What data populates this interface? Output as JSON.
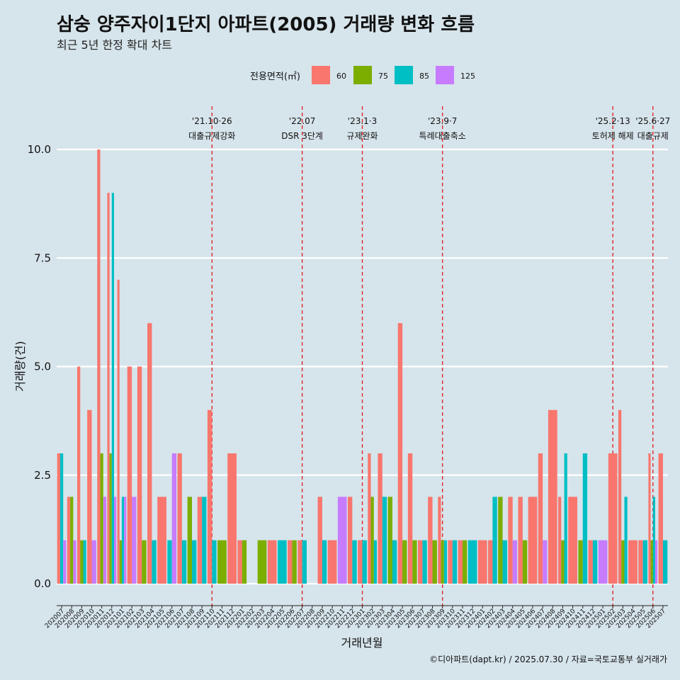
{
  "chart_data": {
    "type": "bar",
    "title": "삼숭 양주자이1단지 아파트(2005) 거래량 변화 흐름",
    "subtitle": "최근 5년 한정 확대 차트",
    "xlabel": "거래년월",
    "ylabel": "거래량(건)",
    "ylim": [
      0,
      10.5
    ],
    "yticks": [
      "0.0",
      "2.5",
      "5.0",
      "7.5",
      "10.0"
    ],
    "ytick_values": [
      0,
      2.5,
      5,
      7.5,
      10
    ],
    "legend": {
      "title": "전용면적(㎡)",
      "position": "top",
      "entries": [
        {
          "label": "60",
          "color": "#F8766D"
        },
        {
          "label": "75",
          "color": "#7CAE00"
        },
        {
          "label": "85",
          "color": "#00BFC4"
        },
        {
          "label": "125",
          "color": "#C77CFF"
        }
      ]
    },
    "categories": [
      "202007",
      "202008",
      "202009",
      "202010",
      "202011",
      "202012",
      "202101",
      "202102",
      "202103",
      "202104",
      "202105",
      "202106",
      "202107",
      "202108",
      "202109",
      "202110",
      "202111",
      "202112",
      "202201",
      "202202",
      "202203",
      "202204",
      "202205",
      "202206",
      "202207",
      "202208",
      "202209",
      "202210",
      "202211",
      "202212",
      "202301",
      "202302",
      "202303",
      "202304",
      "202305",
      "202306",
      "202307",
      "202308",
      "202309",
      "202310",
      "202311",
      "202312",
      "202401",
      "202402",
      "202403",
      "202404",
      "202405",
      "202406",
      "202407",
      "202408",
      "202409",
      "202410",
      "202411",
      "202412",
      "202501",
      "202502",
      "202503",
      "202504",
      "202505",
      "202506",
      "202507"
    ],
    "series_colors": {
      "60": "#F8766D",
      "75": "#7CAE00",
      "85": "#00BFC4",
      "125": "#C77CFF"
    },
    "data": [
      {
        "m": "202007",
        "v": {
          "60": 3,
          "85": 3,
          "125": 1
        }
      },
      {
        "m": "202008",
        "v": {
          "60": 2,
          "75": 2,
          "125": 1
        }
      },
      {
        "m": "202009",
        "v": {
          "60": 5,
          "75": 1,
          "85": 1
        }
      },
      {
        "m": "202010",
        "v": {
          "60": 4,
          "125": 1
        }
      },
      {
        "m": "202011",
        "v": {
          "60": 10,
          "75": 3,
          "125": 2
        }
      },
      {
        "m": "202012",
        "v": {
          "60": 9,
          "75": 3,
          "85": 9,
          "125": 2
        }
      },
      {
        "m": "202101",
        "v": {
          "60": 7,
          "75": 1,
          "85": 2,
          "125": 2
        }
      },
      {
        "m": "202102",
        "v": {
          "60": 5,
          "125": 2
        }
      },
      {
        "m": "202103",
        "v": {
          "60": 5,
          "75": 1
        }
      },
      {
        "m": "202104",
        "v": {
          "60": 6,
          "85": 1
        }
      },
      {
        "m": "202105",
        "v": {
          "60": 2
        }
      },
      {
        "m": "202106",
        "v": {
          "85": 1,
          "125": 3
        }
      },
      {
        "m": "202107",
        "v": {
          "60": 3,
          "85": 1
        }
      },
      {
        "m": "202108",
        "v": {
          "75": 2,
          "85": 1
        }
      },
      {
        "m": "202109",
        "v": {
          "60": 2,
          "85": 2
        }
      },
      {
        "m": "202110",
        "v": {
          "60": 4,
          "85": 1
        }
      },
      {
        "m": "202111",
        "v": {
          "75": 1
        }
      },
      {
        "m": "202112",
        "v": {
          "60": 3
        }
      },
      {
        "m": "202201",
        "v": {
          "60": 1,
          "75": 1
        }
      },
      {
        "m": "202202",
        "v": {}
      },
      {
        "m": "202203",
        "v": {
          "75": 1
        }
      },
      {
        "m": "202204",
        "v": {
          "60": 1
        }
      },
      {
        "m": "202205",
        "v": {
          "85": 1
        }
      },
      {
        "m": "202206",
        "v": {
          "60": 1,
          "75": 1
        }
      },
      {
        "m": "202207",
        "v": {
          "60": 1,
          "85": 1
        }
      },
      {
        "m": "202208",
        "v": {}
      },
      {
        "m": "202209",
        "v": {
          "60": 2,
          "85": 1
        }
      },
      {
        "m": "202210",
        "v": {
          "60": 1
        }
      },
      {
        "m": "202211",
        "v": {
          "125": 2
        }
      },
      {
        "m": "202212",
        "v": {
          "60": 2,
          "85": 1
        }
      },
      {
        "m": "202301",
        "v": {
          "60": 1,
          "85": 1
        }
      },
      {
        "m": "202302",
        "v": {
          "60": 3,
          "75": 2,
          "85": 1
        }
      },
      {
        "m": "202303",
        "v": {
          "60": 3,
          "85": 2
        }
      },
      {
        "m": "202304",
        "v": {
          "75": 2,
          "85": 1
        }
      },
      {
        "m": "202305",
        "v": {
          "60": 6,
          "75": 1
        }
      },
      {
        "m": "202306",
        "v": {
          "60": 3,
          "75": 1
        }
      },
      {
        "m": "202307",
        "v": {
          "60": 1,
          "85": 1
        }
      },
      {
        "m": "202308",
        "v": {
          "60": 2,
          "75": 1
        }
      },
      {
        "m": "202309",
        "v": {
          "60": 2,
          "75": 1,
          "85": 1
        }
      },
      {
        "m": "202310",
        "v": {
          "60": 1,
          "85": 1
        }
      },
      {
        "m": "202311",
        "v": {
          "60": 1,
          "75": 1
        }
      },
      {
        "m": "202312",
        "v": {
          "85": 1
        }
      },
      {
        "m": "202401",
        "v": {
          "60": 1
        }
      },
      {
        "m": "202402",
        "v": {
          "60": 1,
          "85": 2
        }
      },
      {
        "m": "202403",
        "v": {
          "75": 2,
          "85": 1
        }
      },
      {
        "m": "202404",
        "v": {
          "60": 2,
          "125": 1
        }
      },
      {
        "m": "202405",
        "v": {
          "60": 2,
          "75": 1
        }
      },
      {
        "m": "202406",
        "v": {
          "60": 2
        }
      },
      {
        "m": "202407",
        "v": {
          "60": 3,
          "125": 1
        }
      },
      {
        "m": "202408",
        "v": {
          "60": 4
        }
      },
      {
        "m": "202409",
        "v": {
          "60": 2,
          "75": 1,
          "85": 3
        }
      },
      {
        "m": "202410",
        "v": {
          "60": 2
        }
      },
      {
        "m": "202411",
        "v": {
          "75": 1,
          "85": 3
        }
      },
      {
        "m": "202412",
        "v": {
          "60": 1,
          "85": 1
        }
      },
      {
        "m": "202501",
        "v": {
          "125": 1
        }
      },
      {
        "m": "202502",
        "v": {
          "60": 3
        }
      },
      {
        "m": "202503",
        "v": {
          "60": 4,
          "75": 1,
          "85": 2
        }
      },
      {
        "m": "202504",
        "v": {
          "60": 1
        }
      },
      {
        "m": "202505",
        "v": {
          "60": 1,
          "85": 1
        }
      },
      {
        "m": "202506",
        "v": {
          "60": 3,
          "75": 1,
          "85": 2,
          "125": 1
        }
      },
      {
        "m": "202507",
        "v": {
          "60": 3,
          "85": 1
        }
      }
    ],
    "events": [
      {
        "date_label": "'21.10·26",
        "desc": "대출규제강화",
        "month": "202110"
      },
      {
        "date_label": "'22.07",
        "desc": "DSR 3단계",
        "month": "202207"
      },
      {
        "date_label": "'23.1·3",
        "desc": "규제완화",
        "month": "202301"
      },
      {
        "date_label": "'23.9·7",
        "desc": "특례대출축소",
        "month": "202309"
      },
      {
        "date_label": "'25.2·13",
        "desc": "토허제 해제",
        "month": "202502"
      },
      {
        "date_label": "'25.6·27",
        "desc": "대출규제",
        "month": "202506"
      }
    ]
  },
  "caption": "©디아파트(dapt.kr) / 2025.07.30 / 자료=국토교통부 실거래가",
  "colors": {
    "background": "#d6e4eb",
    "grid": "#ffffff",
    "event_line": "#e31a1c"
  }
}
